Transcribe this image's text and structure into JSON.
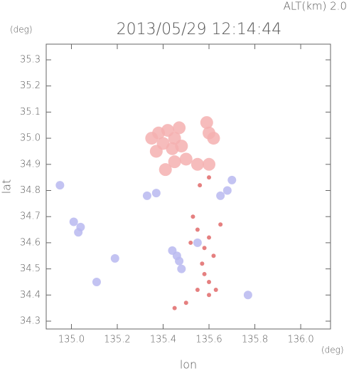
{
  "chart_data": {
    "type": "scatter",
    "header": "ALT(km) 2.0",
    "title": "2013/05/29 12:14:44",
    "x_unit": "(deg)",
    "y_unit": "(deg)",
    "xlabel": "lon",
    "ylabel": "lat",
    "xlim": [
      134.89,
      136.13
    ],
    "ylim": [
      34.27,
      35.36
    ],
    "xticks": [
      {
        "value": 135.0,
        "label": "135.0"
      },
      135.2,
      135.4,
      135.6,
      135.8,
      {
        "value": 136.0,
        "label": "136.0"
      }
    ],
    "yticks": [
      34.3,
      34.4,
      34.5,
      34.6,
      34.7,
      34.8,
      34.9,
      {
        "value": 35.0,
        "label": "35.0"
      },
      35.1,
      35.2,
      35.3
    ],
    "series": [
      {
        "color": "#f5b0b0",
        "x": [
          135.38,
          135.42,
          135.45,
          135.4,
          135.44,
          135.48,
          135.37,
          135.35,
          135.47,
          135.6,
          135.62,
          135.59,
          135.45,
          135.5,
          135.55,
          135.6,
          135.41
        ],
        "y": [
          35.02,
          35.03,
          35.0,
          34.98,
          34.96,
          34.97,
          34.95,
          35.0,
          35.04,
          35.02,
          35.0,
          35.06,
          34.91,
          34.92,
          34.9,
          34.9,
          34.88
        ]
      },
      {
        "color": "#b8b8f0",
        "x": [
          134.95,
          135.01,
          135.04,
          135.03,
          135.19,
          135.37,
          135.33,
          135.44,
          135.47,
          135.46,
          135.77,
          135.65,
          135.68,
          135.7,
          135.11,
          135.55,
          135.48
        ],
        "y": [
          34.82,
          34.68,
          34.66,
          34.64,
          34.54,
          34.79,
          34.78,
          34.57,
          34.53,
          34.55,
          34.4,
          34.78,
          34.8,
          34.84,
          34.45,
          34.6,
          34.5
        ]
      },
      {
        "color": "#e06a6a",
        "x": [
          135.55,
          135.6,
          135.58,
          135.62,
          135.58,
          135.6,
          135.55,
          135.52,
          135.65,
          135.56,
          135.6,
          135.5,
          135.45,
          135.6,
          135.63,
          135.53,
          135.57
        ],
        "y": [
          34.65,
          34.62,
          34.58,
          34.55,
          34.48,
          34.45,
          34.42,
          34.6,
          34.67,
          34.82,
          34.85,
          34.37,
          34.35,
          34.4,
          34.42,
          34.7,
          34.52
        ]
      }
    ]
  }
}
